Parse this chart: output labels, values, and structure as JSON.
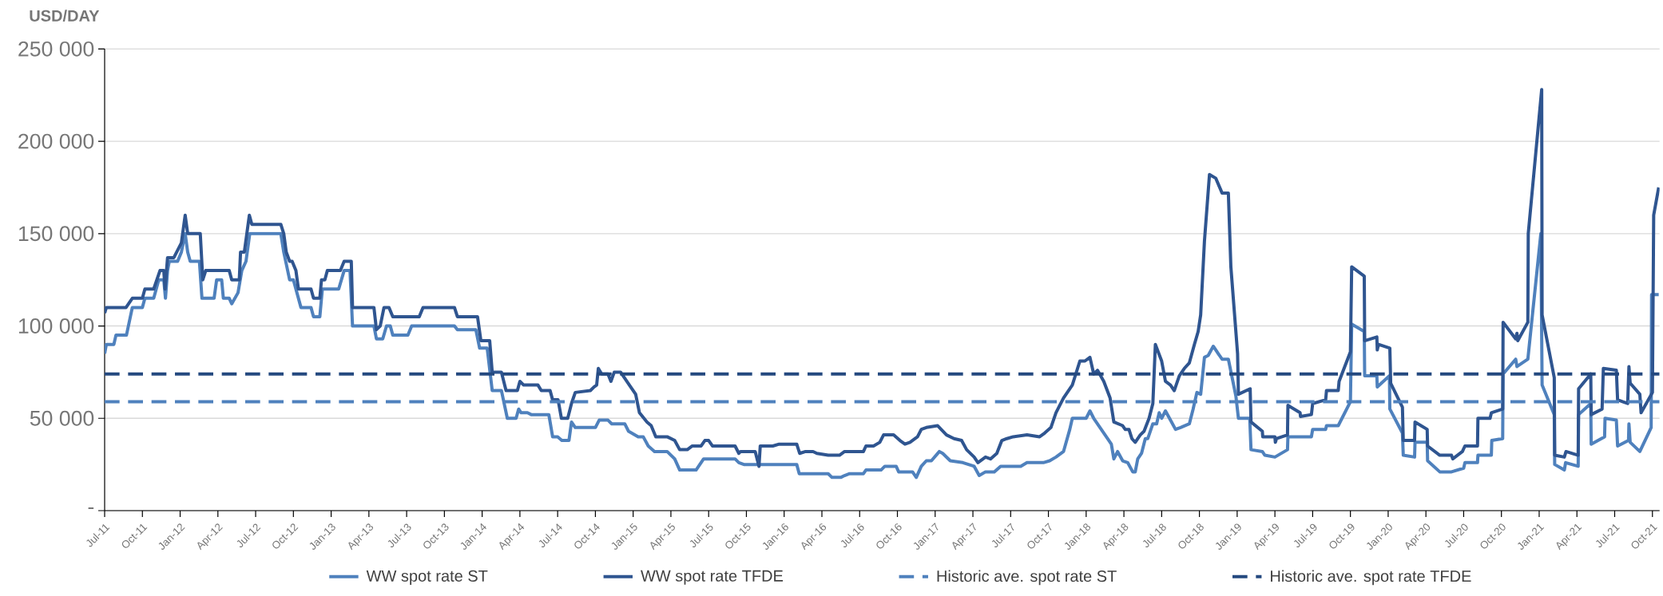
{
  "chart_data": {
    "type": "line",
    "ylabel": "USD/DAY",
    "xlim": [
      "2011-07-01",
      "2021-10-18"
    ],
    "xticks": [
      {
        "value": "2011-07",
        "label": "Jul-11"
      },
      {
        "value": "2011-10",
        "label": "Oct-11"
      },
      {
        "value": "2012-01",
        "label": "Jan-12"
      },
      {
        "value": "2012-04",
        "label": "Apr-12"
      },
      {
        "value": "2012-07",
        "label": "Jul-12"
      },
      {
        "value": "2012-10",
        "label": "Oct-12"
      },
      {
        "value": "2013-01",
        "label": "Jan-13"
      },
      {
        "value": "2013-04",
        "label": "Apr-13"
      },
      {
        "value": "2013-07",
        "label": "Jul-13"
      },
      {
        "value": "2013-10",
        "label": "Oct-13"
      },
      {
        "value": "2014-01",
        "label": "Jan-14"
      },
      {
        "value": "2014-04",
        "label": "Apr-14"
      },
      {
        "value": "2014-07",
        "label": "Jul-14"
      },
      {
        "value": "2014-10",
        "label": "Oct-14"
      },
      {
        "value": "2015-01",
        "label": "Jan-15"
      },
      {
        "value": "2015-04",
        "label": "Apr-15"
      },
      {
        "value": "2015-07",
        "label": "Jul-15"
      },
      {
        "value": "2015-10",
        "label": "Oct-15"
      },
      {
        "value": "2016-01",
        "label": "Jan-16"
      },
      {
        "value": "2016-04",
        "label": "Apr-16"
      },
      {
        "value": "2016-07",
        "label": "Jul-16"
      },
      {
        "value": "2016-10",
        "label": "Oct-16"
      },
      {
        "value": "2017-01",
        "label": "Jan-17"
      },
      {
        "value": "2017-04",
        "label": "Apr-17"
      },
      {
        "value": "2017-07",
        "label": "Jul-17"
      },
      {
        "value": "2017-10",
        "label": "Oct-17"
      },
      {
        "value": "2018-01",
        "label": "Jan-18"
      },
      {
        "value": "2018-04",
        "label": "Apr-18"
      },
      {
        "value": "2018-07",
        "label": "Jul-18"
      },
      {
        "value": "2018-10",
        "label": "Oct-18"
      },
      {
        "value": "2019-01",
        "label": "Jan-19"
      },
      {
        "value": "2019-04",
        "label": "Apr-19"
      },
      {
        "value": "2019-07",
        "label": "Jul-19"
      },
      {
        "value": "2019-10",
        "label": "Oct-19"
      },
      {
        "value": "2020-01",
        "label": "Jan-20"
      },
      {
        "value": "2020-04",
        "label": "Apr-20"
      },
      {
        "value": "2020-07",
        "label": "Jul-20"
      },
      {
        "value": "2020-10",
        "label": "Oct-20"
      },
      {
        "value": "2021-01",
        "label": "Jan-21"
      },
      {
        "value": "2021-04",
        "label": "Apr-21"
      },
      {
        "value": "2021-07",
        "label": "Jul-21"
      },
      {
        "value": "2021-10",
        "label": "Oct-21"
      }
    ],
    "ylim": [
      0,
      250000
    ],
    "yticks": [
      {
        "value": 0,
        "label": "-"
      },
      {
        "value": 50000,
        "label": "50 000"
      },
      {
        "value": 100000,
        "label": "100 000"
      },
      {
        "value": 150000,
        "label": "150 000"
      },
      {
        "value": 200000,
        "label": "200 000"
      },
      {
        "value": 250000,
        "label": "250 000"
      }
    ],
    "grid": "y",
    "legend": "bottom",
    "marker": "none",
    "line_style": "solid",
    "series": [
      {
        "name": "WW spot rate ST",
        "color": "#4f81bd",
        "x": [
          "2011-07-01",
          "2011-07-05",
          "2011-07-23",
          "2011-07-28",
          "2011-08-23",
          "2011-09-07",
          "2011-10-01",
          "2011-10-07",
          "2011-10-28",
          "2011-11-10",
          "2011-11-22",
          "2011-11-26",
          "2011-12-01",
          "2011-12-05",
          "2011-12-25",
          "2012-01-04",
          "2012-01-13",
          "2012-01-19",
          "2012-01-25",
          "2012-02-17",
          "2012-02-23",
          "2012-03-22",
          "2012-03-28",
          "2012-04-10",
          "2012-04-14",
          "2012-04-28",
          "2012-05-04",
          "2012-05-19",
          "2012-05-28",
          "2012-06-08",
          "2012-06-17",
          "2012-09-01",
          "2012-09-08",
          "2012-09-22",
          "2012-10-01",
          "2012-10-19",
          "2012-11-13",
          "2012-11-19",
          "2012-12-04",
          "2012-12-10",
          "2013-01-19",
          "2013-02-02",
          "2013-02-16",
          "2013-02-22",
          "2013-04-13",
          "2013-04-19",
          "2013-05-04",
          "2013-05-13",
          "2013-05-22",
          "2013-05-28",
          "2013-07-04",
          "2013-07-13",
          "2013-10-25",
          "2013-11-02",
          "2013-12-16",
          "2013-12-25",
          "2014-01-13",
          "2014-01-25",
          "2014-02-17",
          "2014-03-01",
          "2014-03-22",
          "2014-03-28",
          "2014-04-04",
          "2014-04-19",
          "2014-04-28",
          "2014-06-10",
          "2014-06-19",
          "2014-07-01",
          "2014-07-11",
          "2014-07-28",
          "2014-08-04",
          "2014-08-13",
          "2014-10-01",
          "2014-10-10",
          "2014-11-01",
          "2014-11-10",
          "2014-12-11",
          "2014-12-20",
          "2015-01-13",
          "2015-01-25",
          "2015-02-07",
          "2015-02-22",
          "2015-03-22",
          "2015-04-10",
          "2015-04-22",
          "2015-06-01",
          "2015-06-19",
          "2015-09-04",
          "2015-09-13",
          "2015-09-25",
          "2016-02-01",
          "2016-02-07",
          "2016-04-16",
          "2016-04-25",
          "2016-05-16",
          "2016-05-25",
          "2016-06-07",
          "2016-07-10",
          "2016-07-16",
          "2016-08-22",
          "2016-09-01",
          "2016-09-28",
          "2016-10-04",
          "2016-11-07",
          "2016-11-16",
          "2016-11-28",
          "2016-12-10",
          "2016-12-22",
          "2017-01-11",
          "2017-01-19",
          "2017-02-07",
          "2017-03-07",
          "2017-04-04",
          "2017-04-16",
          "2017-05-01",
          "2017-05-22",
          "2017-06-07",
          "2017-07-25",
          "2017-08-10",
          "2017-09-19",
          "2017-10-04",
          "2017-10-19",
          "2017-11-07",
          "2017-11-22",
          "2017-11-28",
          "2018-01-01",
          "2018-01-10",
          "2018-01-19",
          "2018-02-04",
          "2018-02-19",
          "2018-03-01",
          "2018-03-07",
          "2018-03-16",
          "2018-03-28",
          "2018-04-10",
          "2018-04-22",
          "2018-04-28",
          "2018-05-04",
          "2018-05-13",
          "2018-05-22",
          "2018-05-28",
          "2018-06-10",
          "2018-06-19",
          "2018-06-25",
          "2018-07-01",
          "2018-07-10",
          "2018-07-22",
          "2018-08-04",
          "2018-08-16",
          "2018-09-07",
          "2018-09-16",
          "2018-09-25",
          "2018-10-04",
          "2018-10-13",
          "2018-10-22",
          "2018-11-04",
          "2018-11-16",
          "2018-11-25",
          "2018-12-10",
          "2018-12-28",
          "2019-01-04",
          "2019-02-01",
          "2019-02-04",
          "2019-03-01",
          "2019-03-07",
          "2019-04-01",
          "2019-05-01",
          "2019-05-02",
          "2019-06-28",
          "2019-07-01",
          "2019-08-02",
          "2019-08-04",
          "2019-09-02",
          "2019-10-01",
          "2019-10-04",
          "2019-11-04",
          "2019-11-05",
          "2019-12-04",
          "2019-12-05",
          "2020-01-04",
          "2020-01-05",
          "2020-02-05",
          "2020-02-07",
          "2020-03-04",
          "2020-03-05",
          "2020-04-04",
          "2020-04-05",
          "2020-05-04",
          "2020-06-02",
          "2020-07-01",
          "2020-07-04",
          "2020-08-04",
          "2020-08-05",
          "2020-09-07",
          "2020-09-08",
          "2020-10-04",
          "2020-10-05",
          "2020-11-05",
          "2020-11-08",
          "2020-12-04",
          "2021-01-05",
          "2021-01-08",
          "2021-02-07",
          "2021-02-08",
          "2021-03-01",
          "2021-03-04",
          "2021-04-04",
          "2021-04-05",
          "2021-05-04",
          "2021-05-05",
          "2021-06-07",
          "2021-06-08",
          "2021-07-05",
          "2021-07-08",
          "2021-08-04",
          "2021-08-05",
          "2021-08-08",
          "2021-09-01",
          "2021-09-28",
          "2021-09-29",
          "2021-10-16"
        ],
        "values": [
          85000,
          90000,
          90000,
          95000,
          95000,
          110000,
          110000,
          115000,
          115000,
          125000,
          125000,
          115000,
          130000,
          135000,
          135000,
          140000,
          150000,
          140000,
          135000,
          135000,
          115000,
          115000,
          125000,
          125000,
          115000,
          115000,
          112000,
          118000,
          130000,
          135000,
          150000,
          150000,
          140000,
          125000,
          125000,
          110000,
          110000,
          105000,
          105000,
          120000,
          120000,
          130000,
          130000,
          100000,
          100000,
          93000,
          93000,
          100000,
          100000,
          95000,
          95000,
          100000,
          100000,
          98000,
          98000,
          88000,
          88000,
          65000,
          65000,
          50000,
          50000,
          55000,
          53000,
          53000,
          52000,
          52000,
          40000,
          40000,
          38000,
          38000,
          48000,
          45000,
          45000,
          49000,
          49000,
          47000,
          47000,
          43000,
          40000,
          40000,
          35000,
          32000,
          32000,
          28000,
          22000,
          22000,
          28000,
          28000,
          26000,
          25000,
          25000,
          20000,
          20000,
          18000,
          18000,
          19000,
          20000,
          20000,
          22000,
          22000,
          24000,
          24000,
          21000,
          21000,
          18000,
          24000,
          27000,
          27000,
          32000,
          31000,
          27000,
          26000,
          24000,
          19000,
          21000,
          21000,
          24000,
          24000,
          26000,
          26000,
          27000,
          29000,
          32000,
          44000,
          50000,
          50000,
          54000,
          50000,
          45000,
          40000,
          36000,
          28000,
          32000,
          27000,
          26000,
          21000,
          21000,
          28000,
          31000,
          39000,
          39000,
          47000,
          47000,
          53000,
          50000,
          54000,
          49000,
          44000,
          45000,
          47000,
          55000,
          64000,
          63000,
          83000,
          84000,
          89000,
          85000,
          82000,
          82000,
          62000,
          50000,
          50000,
          33000,
          32000,
          30000,
          29000,
          33000,
          40000,
          40000,
          44000,
          44000,
          46000,
          46000,
          59000,
          101000,
          97000,
          73000,
          73000,
          67000,
          73000,
          55000,
          42000,
          30000,
          29000,
          37000,
          37000,
          27000,
          21000,
          21000,
          23000,
          26000,
          26000,
          30000,
          30000,
          38000,
          39000,
          74000,
          82000,
          78000,
          82000,
          150000,
          68000,
          52000,
          25000,
          22000,
          26000,
          24000,
          52000,
          58000,
          36000,
          40000,
          50000,
          49000,
          35000,
          38000,
          47000,
          37000,
          32000,
          45000,
          117000,
          117000
        ]
      },
      {
        "name": "WW spot rate TFDE",
        "color": "#2f5590",
        "x": [
          "2011-07-01",
          "2011-07-05",
          "2011-08-22",
          "2011-09-07",
          "2011-10-01",
          "2011-10-07",
          "2011-10-28",
          "2011-11-13",
          "2011-11-22",
          "2011-11-25",
          "2011-12-01",
          "2011-12-16",
          "2012-01-04",
          "2012-01-13",
          "2012-01-19",
          "2012-02-19",
          "2012-02-25",
          "2012-03-02",
          "2012-04-28",
          "2012-05-04",
          "2012-05-22",
          "2012-05-25",
          "2012-06-04",
          "2012-06-16",
          "2012-06-22",
          "2012-09-01",
          "2012-09-08",
          "2012-09-14",
          "2012-09-22",
          "2012-09-28",
          "2012-10-07",
          "2012-10-13",
          "2012-11-13",
          "2012-11-19",
          "2012-12-04",
          "2012-12-08",
          "2012-12-16",
          "2012-12-22",
          "2013-01-23",
          "2013-02-02",
          "2013-02-19",
          "2013-02-22",
          "2013-04-13",
          "2013-04-19",
          "2013-04-28",
          "2013-05-07",
          "2013-05-19",
          "2013-05-28",
          "2013-08-01",
          "2013-08-10",
          "2013-10-25",
          "2013-11-02",
          "2013-12-20",
          "2013-12-28",
          "2014-01-19",
          "2014-01-25",
          "2014-02-17",
          "2014-02-28",
          "2014-03-25",
          "2014-04-01",
          "2014-04-10",
          "2014-05-14",
          "2014-05-22",
          "2014-06-13",
          "2014-06-19",
          "2014-07-02",
          "2014-07-10",
          "2014-07-25",
          "2014-08-04",
          "2014-08-13",
          "2014-09-19",
          "2014-09-28",
          "2014-10-04",
          "2014-10-08",
          "2014-10-16",
          "2014-11-01",
          "2014-11-08",
          "2014-11-16",
          "2014-12-01",
          "2014-12-22",
          "2015-01-07",
          "2015-01-16",
          "2015-02-04",
          "2015-02-14",
          "2015-02-25",
          "2015-03-22",
          "2015-04-10",
          "2015-04-22",
          "2015-05-10",
          "2015-05-22",
          "2015-06-13",
          "2015-06-22",
          "2015-07-01",
          "2015-07-10",
          "2015-09-04",
          "2015-09-13",
          "2015-09-17",
          "2015-10-22",
          "2015-11-01",
          "2015-11-04",
          "2015-12-04",
          "2015-12-19",
          "2016-02-01",
          "2016-02-08",
          "2016-02-22",
          "2016-03-10",
          "2016-03-19",
          "2016-04-16",
          "2016-05-13",
          "2016-05-25",
          "2016-07-10",
          "2016-07-16",
          "2016-08-04",
          "2016-08-19",
          "2016-08-28",
          "2016-09-22",
          "2016-10-07",
          "2016-10-19",
          "2016-11-01",
          "2016-11-19",
          "2016-11-28",
          "2016-12-10",
          "2017-01-07",
          "2017-01-28",
          "2017-02-16",
          "2017-03-04",
          "2017-03-16",
          "2017-04-04",
          "2017-04-13",
          "2017-05-01",
          "2017-05-13",
          "2017-05-28",
          "2017-06-10",
          "2017-06-22",
          "2017-07-07",
          "2017-08-10",
          "2017-09-10",
          "2017-09-22",
          "2017-10-07",
          "2017-10-19",
          "2017-11-07",
          "2017-11-28",
          "2017-12-16",
          "2017-12-28",
          "2018-01-10",
          "2018-01-19",
          "2018-01-28",
          "2018-02-13",
          "2018-02-28",
          "2018-03-07",
          "2018-03-28",
          "2018-04-04",
          "2018-04-13",
          "2018-04-20",
          "2018-04-28",
          "2018-05-10",
          "2018-05-19",
          "2018-06-01",
          "2018-06-10",
          "2018-06-16",
          "2018-07-01",
          "2018-07-10",
          "2018-07-22",
          "2018-08-01",
          "2018-08-13",
          "2018-08-25",
          "2018-09-07",
          "2018-09-19",
          "2018-09-28",
          "2018-10-04",
          "2018-10-13",
          "2018-10-25",
          "2018-11-10",
          "2018-11-25",
          "2018-12-10",
          "2018-12-16",
          "2019-01-02",
          "2019-01-04",
          "2019-02-02",
          "2019-02-04",
          "2019-03-01",
          "2019-03-02",
          "2019-04-01",
          "2019-04-02",
          "2019-04-05",
          "2019-05-01",
          "2019-05-02",
          "2019-06-01",
          "2019-06-02",
          "2019-06-28",
          "2019-07-01",
          "2019-08-02",
          "2019-08-04",
          "2019-09-02",
          "2019-09-04",
          "2019-10-01",
          "2019-10-04",
          "2019-11-04",
          "2019-11-05",
          "2019-12-04",
          "2019-12-05",
          "2019-12-08",
          "2020-01-05",
          "2020-01-07",
          "2020-02-05",
          "2020-02-07",
          "2020-03-04",
          "2020-03-05",
          "2020-04-04",
          "2020-04-05",
          "2020-05-04",
          "2020-06-02",
          "2020-06-05",
          "2020-06-28",
          "2020-07-04",
          "2020-08-04",
          "2020-08-05",
          "2020-09-04",
          "2020-09-07",
          "2020-10-04",
          "2020-10-05",
          "2020-11-05",
          "2020-11-08",
          "2020-11-10",
          "2020-12-04",
          "2020-12-05",
          "2021-01-07",
          "2021-01-08",
          "2021-02-07",
          "2021-02-08",
          "2021-03-01",
          "2021-03-05",
          "2021-04-04",
          "2021-04-05",
          "2021-05-04",
          "2021-05-05",
          "2021-06-01",
          "2021-06-04",
          "2021-07-05",
          "2021-07-08",
          "2021-08-02",
          "2021-08-05",
          "2021-08-08",
          "2021-09-01",
          "2021-09-04",
          "2021-10-01",
          "2021-10-04",
          "2021-10-16"
        ],
        "values": [
          107000,
          110000,
          110000,
          115000,
          115000,
          120000,
          120000,
          130000,
          130000,
          120000,
          137000,
          137000,
          145000,
          160000,
          150000,
          150000,
          125000,
          130000,
          130000,
          125000,
          125000,
          140000,
          140000,
          160000,
          155000,
          155000,
          150000,
          140000,
          135000,
          135000,
          130000,
          120000,
          120000,
          115000,
          115000,
          125000,
          125000,
          130000,
          130000,
          135000,
          135000,
          110000,
          110000,
          98000,
          100000,
          110000,
          110000,
          105000,
          105000,
          110000,
          110000,
          105000,
          105000,
          92000,
          92000,
          75000,
          75000,
          65000,
          65000,
          70000,
          68000,
          68000,
          65000,
          65000,
          60000,
          60000,
          50000,
          50000,
          58000,
          64000,
          65000,
          67000,
          68000,
          77000,
          74000,
          74000,
          70000,
          75000,
          75000,
          68000,
          63000,
          53000,
          48000,
          46000,
          40000,
          40000,
          38000,
          33000,
          33000,
          35000,
          35000,
          38000,
          38000,
          35000,
          35000,
          31000,
          32000,
          32000,
          24000,
          35000,
          35000,
          36000,
          36000,
          31000,
          32000,
          32000,
          31000,
          30000,
          30000,
          32000,
          32000,
          35000,
          35000,
          37000,
          41000,
          41000,
          38000,
          36000,
          37000,
          40000,
          44000,
          45000,
          46000,
          41000,
          39000,
          38000,
          33000,
          29000,
          26000,
          29000,
          28000,
          31000,
          38000,
          39000,
          40000,
          41000,
          40000,
          42000,
          45000,
          53000,
          61000,
          68000,
          81000,
          81000,
          83000,
          74000,
          76000,
          70000,
          61000,
          48000,
          46000,
          44000,
          44000,
          39000,
          37000,
          41000,
          43000,
          50000,
          58000,
          90000,
          81000,
          70000,
          68000,
          65000,
          73000,
          77000,
          80000,
          90000,
          97000,
          106000,
          146000,
          182000,
          180000,
          172000,
          172000,
          132000,
          85000,
          63000,
          66000,
          48000,
          43000,
          40000,
          40000,
          37000,
          39000,
          41000,
          57000,
          53000,
          51000,
          52000,
          58000,
          60000,
          65000,
          65000,
          70000,
          86000,
          132000,
          127000,
          92000,
          94000,
          87000,
          90000,
          88000,
          69000,
          56000,
          38000,
          38000,
          48000,
          44000,
          35000,
          30000,
          30000,
          28000,
          32000,
          35000,
          35000,
          50000,
          50000,
          53000,
          55000,
          102000,
          93000,
          96000,
          92000,
          102000,
          150000,
          228000,
          106000,
          72000,
          30000,
          29000,
          32000,
          30000,
          66000,
          74000,
          52000,
          55000,
          77000,
          76000,
          60000,
          58000,
          78000,
          69000,
          63000,
          53000,
          64000,
          160000,
          175000
        ]
      }
    ],
    "ref_lines": [
      {
        "axis": "y",
        "value": 59000,
        "label": "Historic ave. spot rate ST",
        "color": "#4f81bd",
        "line_style": "dashed"
      },
      {
        "axis": "y",
        "value": 74000,
        "label": "Historic ave. spot rate TFDE",
        "color": "#24497f",
        "line_style": "dashed"
      }
    ]
  }
}
